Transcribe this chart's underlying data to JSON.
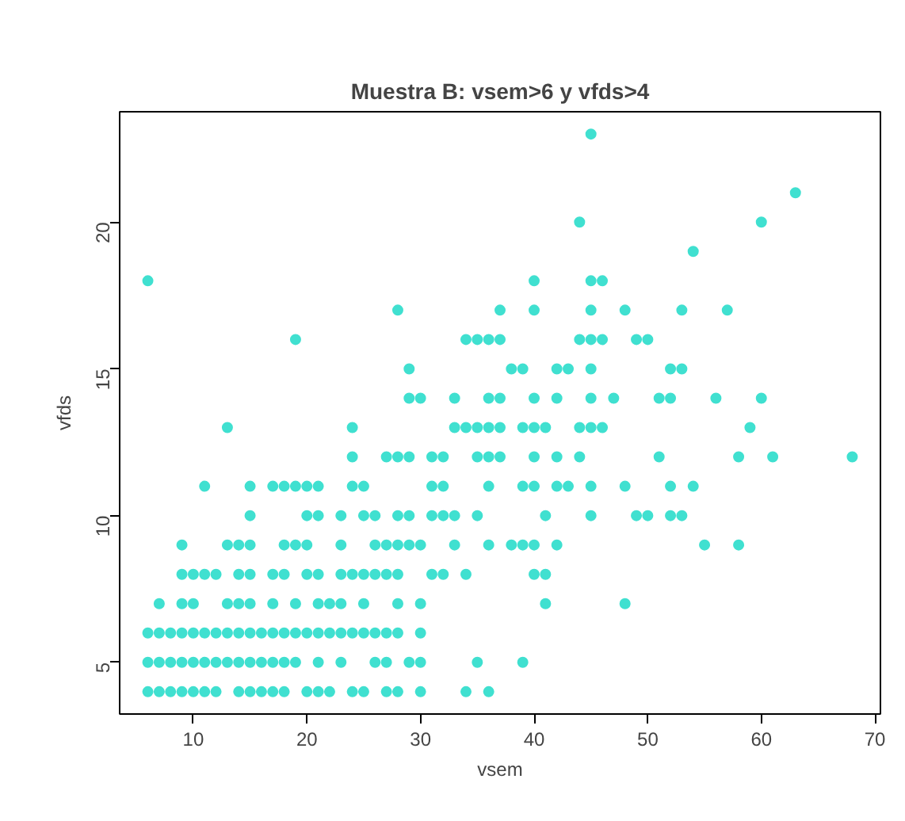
{
  "chart_data": {
    "type": "scatter",
    "title": "Muestra B: vsem>6 y vfds>4",
    "xlabel": "vsem",
    "ylabel": "vfds",
    "xlim": [
      3.52,
      70.48
    ],
    "ylim": [
      3.24,
      23.76
    ],
    "xticks": [
      10,
      20,
      30,
      40,
      50,
      60,
      70
    ],
    "yticks": [
      5,
      10,
      15,
      20
    ],
    "grid": false,
    "marker": "circle",
    "series": [
      {
        "color": "#40e0d0",
        "x": [
          6,
          7,
          8,
          9,
          10,
          11,
          12,
          14,
          15,
          16,
          17,
          18,
          20,
          21,
          22,
          24,
          25,
          27,
          28,
          30,
          34,
          36,
          6,
          7,
          8,
          9,
          10,
          11,
          12,
          13,
          14,
          15,
          16,
          17,
          18,
          19,
          21,
          23,
          26,
          27,
          29,
          30,
          35,
          39,
          6,
          7,
          8,
          9,
          10,
          11,
          12,
          13,
          14,
          15,
          16,
          17,
          18,
          19,
          20,
          21,
          22,
          23,
          24,
          25,
          26,
          27,
          28,
          30,
          7,
          9,
          10,
          13,
          14,
          15,
          17,
          19,
          21,
          22,
          23,
          25,
          28,
          30,
          41,
          48,
          9,
          10,
          11,
          12,
          14,
          15,
          17,
          18,
          20,
          21,
          23,
          24,
          25,
          26,
          27,
          28,
          31,
          32,
          34,
          40,
          41,
          9,
          13,
          14,
          15,
          18,
          19,
          20,
          23,
          26,
          27,
          28,
          29,
          30,
          33,
          36,
          38,
          39,
          40,
          42,
          55,
          58,
          15,
          20,
          21,
          23,
          25,
          26,
          28,
          29,
          31,
          32,
          33,
          35,
          41,
          45,
          49,
          50,
          52,
          53,
          11,
          15,
          17,
          18,
          19,
          20,
          21,
          24,
          25,
          31,
          32,
          36,
          39,
          40,
          42,
          43,
          45,
          48,
          52,
          54,
          24,
          27,
          28,
          29,
          31,
          32,
          35,
          36,
          37,
          40,
          42,
          44,
          51,
          58,
          61,
          68,
          13,
          24,
          33,
          34,
          35,
          36,
          37,
          39,
          40,
          41,
          44,
          45,
          46,
          59,
          29,
          30,
          33,
          36,
          37,
          40,
          42,
          45,
          47,
          51,
          52,
          56,
          60,
          29,
          38,
          39,
          42,
          43,
          45,
          52,
          53,
          19,
          34,
          35,
          36,
          37,
          44,
          45,
          46,
          49,
          50,
          28,
          37,
          40,
          45,
          48,
          53,
          57,
          6,
          40,
          45,
          46,
          54,
          44,
          60,
          63,
          45
        ],
        "values": [
          4,
          4,
          4,
          4,
          4,
          4,
          4,
          4,
          4,
          4,
          4,
          4,
          4,
          4,
          4,
          4,
          4,
          4,
          4,
          4,
          4,
          4,
          5,
          5,
          5,
          5,
          5,
          5,
          5,
          5,
          5,
          5,
          5,
          5,
          5,
          5,
          5,
          5,
          5,
          5,
          5,
          5,
          5,
          5,
          6,
          6,
          6,
          6,
          6,
          6,
          6,
          6,
          6,
          6,
          6,
          6,
          6,
          6,
          6,
          6,
          6,
          6,
          6,
          6,
          6,
          6,
          6,
          6,
          7,
          7,
          7,
          7,
          7,
          7,
          7,
          7,
          7,
          7,
          7,
          7,
          7,
          7,
          7,
          7,
          8,
          8,
          8,
          8,
          8,
          8,
          8,
          8,
          8,
          8,
          8,
          8,
          8,
          8,
          8,
          8,
          8,
          8,
          8,
          8,
          8,
          9,
          9,
          9,
          9,
          9,
          9,
          9,
          9,
          9,
          9,
          9,
          9,
          9,
          9,
          9,
          9,
          9,
          9,
          9,
          9,
          9,
          10,
          10,
          10,
          10,
          10,
          10,
          10,
          10,
          10,
          10,
          10,
          10,
          10,
          10,
          10,
          10,
          10,
          10,
          11,
          11,
          11,
          11,
          11,
          11,
          11,
          11,
          11,
          11,
          11,
          11,
          11,
          11,
          11,
          11,
          11,
          11,
          11,
          11,
          12,
          12,
          12,
          12,
          12,
          12,
          12,
          12,
          12,
          12,
          12,
          12,
          12,
          12,
          12,
          12,
          13,
          13,
          13,
          13,
          13,
          13,
          13,
          13,
          13,
          13,
          13,
          13,
          13,
          13,
          14,
          14,
          14,
          14,
          14,
          14,
          14,
          14,
          14,
          14,
          14,
          14,
          14,
          15,
          15,
          15,
          15,
          15,
          15,
          15,
          15,
          16,
          16,
          16,
          16,
          16,
          16,
          16,
          16,
          16,
          16,
          17,
          17,
          17,
          17,
          17,
          17,
          17,
          18,
          18,
          18,
          18,
          19,
          20,
          20,
          21,
          23
        ]
      }
    ]
  }
}
